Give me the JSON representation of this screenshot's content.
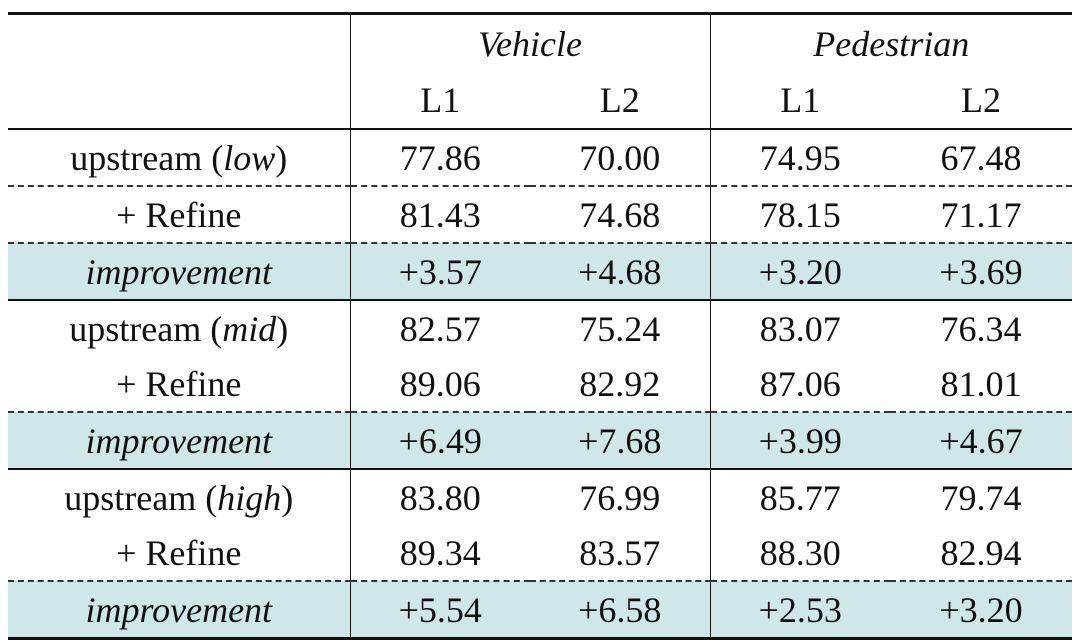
{
  "table": {
    "groups": [
      {
        "label": "Vehicle",
        "subcols": [
          "L1",
          "L2"
        ]
      },
      {
        "label": "Pedestrian",
        "subcols": [
          "L1",
          "L2"
        ]
      }
    ],
    "rows": [
      {
        "prefix": "upstream (",
        "italic": "low",
        "suffix": ")",
        "values": [
          "77.86",
          "70.00",
          "74.95",
          "67.48"
        ]
      },
      {
        "label": "+ Refine",
        "values": [
          "81.43",
          "74.68",
          "78.15",
          "71.17"
        ]
      },
      {
        "label": "improvement",
        "values": [
          "+3.57",
          "+4.68",
          "+3.20",
          "+3.69"
        ]
      },
      {
        "prefix": "upstream (",
        "italic": "mid",
        "suffix": ")",
        "values": [
          "82.57",
          "75.24",
          "83.07",
          "76.34"
        ]
      },
      {
        "label": "+ Refine",
        "values": [
          "89.06",
          "82.92",
          "87.06",
          "81.01"
        ]
      },
      {
        "label": "improvement",
        "values": [
          "+6.49",
          "+7.68",
          "+3.99",
          "+4.67"
        ]
      },
      {
        "prefix": "upstream (",
        "italic": "high",
        "suffix": ")",
        "values": [
          "83.80",
          "76.99",
          "85.77",
          "79.74"
        ]
      },
      {
        "label": "+ Refine",
        "values": [
          "89.34",
          "83.57",
          "88.30",
          "82.94"
        ]
      },
      {
        "label": "improvement",
        "values": [
          "+5.54",
          "+6.58",
          "+2.53",
          "+3.20"
        ]
      }
    ],
    "highlight_color": "#cfe7e9"
  }
}
